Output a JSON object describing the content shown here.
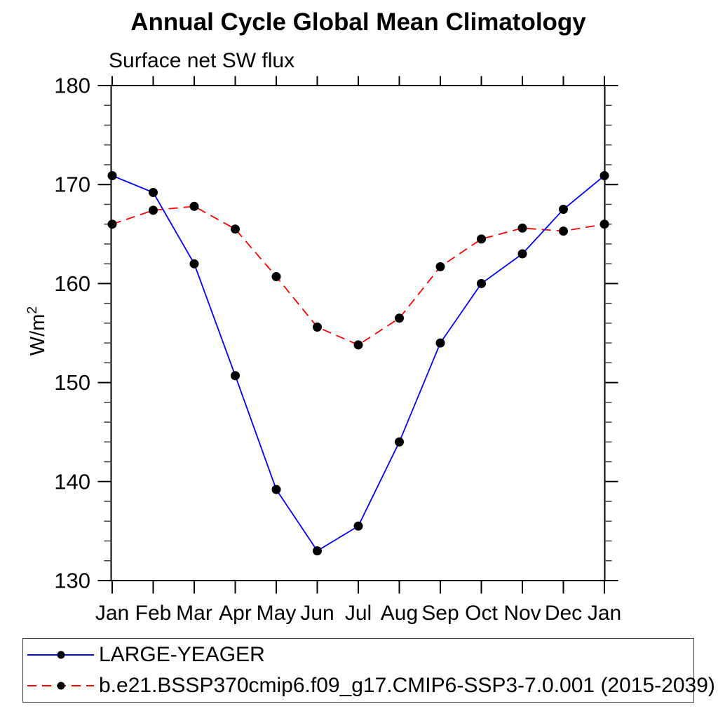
{
  "page": {
    "background": "#ffffff"
  },
  "chart_data": {
    "type": "line",
    "title": "Annual Cycle Global Mean Climatology",
    "subtitle": "Surface net SW flux",
    "ylabel": "W/m²",
    "ylabel_base": "W/m",
    "ylabel_exponent": "2",
    "xlabel": "",
    "x_categories": [
      "Jan",
      "Feb",
      "Mar",
      "Apr",
      "May",
      "Jun",
      "Jul",
      "Aug",
      "Sep",
      "Oct",
      "Nov",
      "Dec",
      "Jan"
    ],
    "ylim": [
      130,
      180
    ],
    "y_ticks_major": [
      130,
      140,
      150,
      160,
      170,
      180
    ],
    "y_minor_tick_step": 2,
    "grid": false,
    "frame_color": "#000000",
    "legend_position": "bottom-left boxed",
    "series": [
      {
        "name": "LARGE-YEAGER",
        "color": "#0000ff",
        "line_style": "solid",
        "marker": "black-dot",
        "marker_color": "#000000",
        "values": [
          170.9,
          169.2,
          162.0,
          150.7,
          139.2,
          133.0,
          135.5,
          144.0,
          154.0,
          160.0,
          163.0,
          167.5,
          170.9
        ]
      },
      {
        "name": "b.e21.BSSP370cmip6.f09_g17.CMIP6-SSP3-7.0.001 (2015-2039)",
        "color": "#ff0000",
        "line_style": "dashed",
        "marker": "black-dot",
        "marker_color": "#000000",
        "values": [
          166.0,
          167.4,
          167.8,
          165.5,
          160.7,
          155.6,
          153.8,
          156.5,
          161.7,
          164.5,
          165.6,
          165.3,
          166.0
        ]
      }
    ]
  }
}
